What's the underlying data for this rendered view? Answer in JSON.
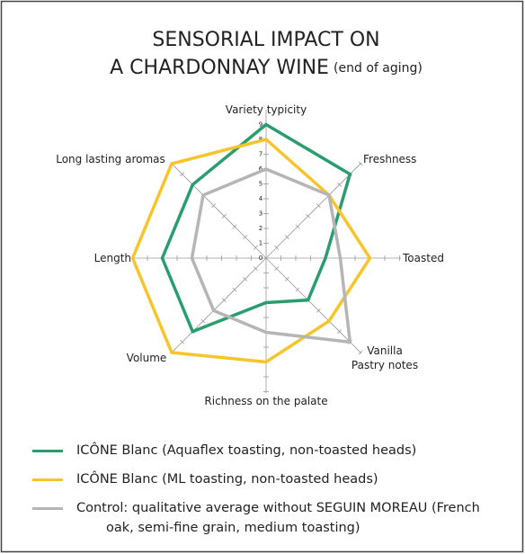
{
  "chart_data": {
    "type": "radar",
    "title": [
      "SENSORIAL IMPACT ON",
      "A CHARDONNAY WINE"
    ],
    "subtitle": "(end of aging)",
    "categories": [
      "Variety typicity",
      "Freshness",
      "Toasted",
      "Vanilla\nPastry notes",
      "Richness on the palate",
      "Volume",
      "Length",
      "Long lasting aromas"
    ],
    "series": [
      {
        "name": "ICÔNE Blanc (Aquaflex toasting, non-toasted heads)",
        "color": "#2a9d6e",
        "values": [
          9,
          8,
          4,
          4,
          3,
          7,
          7,
          7
        ]
      },
      {
        "name": "ICÔNE Blanc (ML toasting, non-toasted heads)",
        "color": "#f7c52a",
        "values": [
          8,
          6,
          7,
          6,
          7,
          9,
          9,
          9
        ]
      },
      {
        "name": "Control: qualitative average without SEGUIN MOREAU (French oak, semi-fine grain, medium toasting)",
        "color": "#b5b5b5",
        "values": [
          6,
          6,
          5,
          8,
          5,
          5,
          5,
          6
        ]
      }
    ],
    "ylim": [
      0,
      9
    ],
    "yticks": [
      0,
      1,
      2,
      3,
      4,
      5,
      6,
      7,
      8,
      9
    ]
  }
}
